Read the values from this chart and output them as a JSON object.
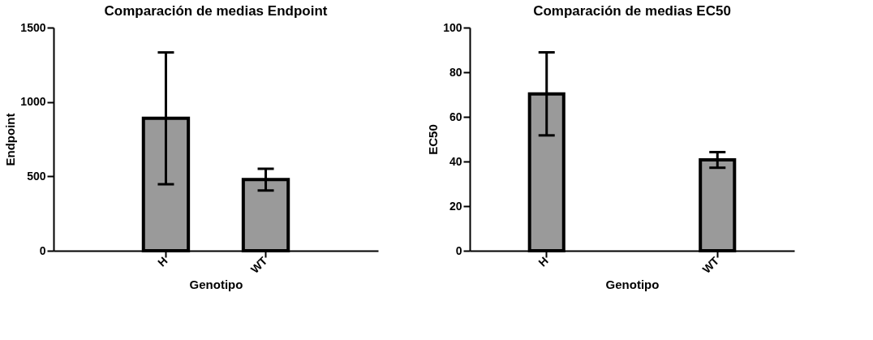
{
  "chart_data": [
    {
      "type": "bar",
      "title": "Comparación de medias Endpoint",
      "xlabel": "Genotipo",
      "ylabel": "Endpoint",
      "categories": [
        "H",
        "WT"
      ],
      "values": [
        890,
        478
      ],
      "errors": [
        443,
        73
      ],
      "color": "#9a9a9a",
      "ylim": [
        0,
        1500
      ],
      "yticks": [
        0,
        500,
        1000,
        1500
      ],
      "grid": false
    },
    {
      "type": "bar",
      "title": "Comparación de medias EC50",
      "xlabel": "Genotipo",
      "ylabel": "EC50",
      "categories": [
        "H",
        "WT"
      ],
      "values": [
        70.3,
        40.7
      ],
      "errors": [
        18.6,
        3.5
      ],
      "color": "#9a9a9a",
      "ylim": [
        0,
        100
      ],
      "yticks": [
        0,
        20,
        40,
        60,
        80,
        100
      ],
      "grid": false
    }
  ]
}
